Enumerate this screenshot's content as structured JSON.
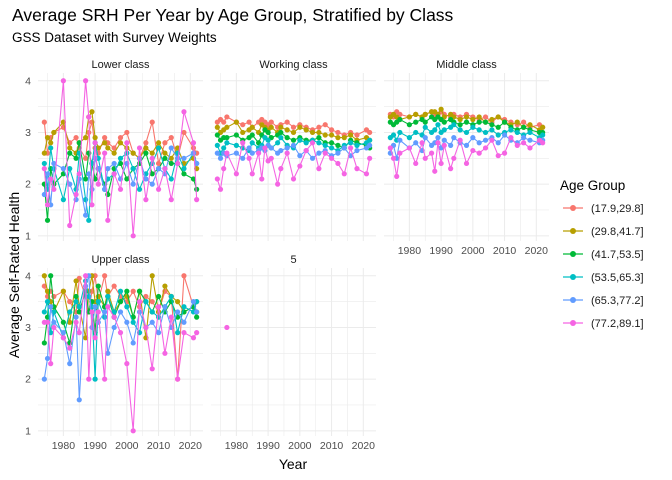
{
  "chart_data": {
    "type": "line",
    "title": "Average SRH Per Year by Age Group, Stratified by Class",
    "subtitle": "GSS Dataset with Survey Weights",
    "xlabel": "Year",
    "ylabel": "Average Self-Rated Health",
    "xlim": [
      1972,
      2024
    ],
    "ylim": [
      0.9,
      4.15
    ],
    "x_ticks": [
      1980,
      1990,
      2000,
      2010,
      2020
    ],
    "y_ticks": [
      1,
      2,
      3,
      4
    ],
    "grid": true,
    "legend_title": "Age Group",
    "legend_position": "right",
    "series": [
      {
        "name": "(17.9,29.8]",
        "color": "#F8766D"
      },
      {
        "name": "(29.8,41.7]",
        "color": "#B79F00"
      },
      {
        "name": "(41.7,53.5]",
        "color": "#00BA38"
      },
      {
        "name": "(53.5,65.3]",
        "color": "#00BFC4"
      },
      {
        "name": "(65.3,77.2]",
        "color": "#619CFF"
      },
      {
        "name": "(77.2,89.1]",
        "color": "#F564E3"
      }
    ],
    "years": [
      1974,
      1975,
      1976,
      1977,
      1980,
      1982,
      1984,
      1985,
      1987,
      1988,
      1989,
      1990,
      1991,
      1993,
      1994,
      1996,
      1998,
      2000,
      2002,
      2004,
      2006,
      2008,
      2010,
      2012,
      2014,
      2016,
      2018,
      2021,
      2022
    ],
    "panels": [
      {
        "label": "Lower class",
        "values": [
          [
            3.2,
            2.6,
            2.9,
            3.0,
            3.1,
            2.8,
            2.9,
            2.7,
            2.5,
            3.0,
            3.2,
            2.7,
            2.6,
            2.9,
            2.8,
            2.7,
            2.9,
            3.0,
            2.6,
            2.5,
            2.8,
            3.2,
            2.4,
            2.8,
            2.9,
            2.5,
            3.0,
            2.7,
            2.6
          ],
          [
            2.6,
            2.9,
            2.8,
            3.0,
            3.2,
            2.7,
            2.6,
            2.8,
            2.9,
            3.3,
            3.4,
            2.9,
            2.7,
            2.8,
            2.7,
            2.6,
            2.8,
            2.7,
            2.6,
            2.5,
            2.7,
            2.6,
            2.8,
            2.6,
            2.5,
            2.7,
            2.4,
            2.5,
            2.3
          ],
          [
            2.0,
            1.3,
            2.3,
            2.0,
            2.2,
            2.6,
            2.5,
            2.8,
            2.1,
            2.6,
            2.4,
            2.1,
            2.3,
            2.0,
            1.8,
            2.3,
            2.4,
            2.1,
            2.3,
            2.4,
            2.6,
            2.2,
            2.3,
            2.5,
            2.4,
            2.4,
            2.2,
            2.1,
            1.9
          ],
          [
            2.4,
            1.9,
            2.7,
            2.3,
            1.7,
            2.3,
            1.9,
            2.6,
            1.7,
            1.3,
            2.4,
            2.8,
            2.5,
            1.9,
            2.1,
            2.2,
            2.5,
            2.6,
            2.3,
            1.9,
            2.2,
            2.4,
            2.7,
            2.3,
            2.1,
            2.6,
            2.3,
            2.6,
            2.4
          ],
          [
            1.8,
            2.2,
            1.6,
            2.4,
            2.3,
            2.0,
            1.7,
            2.1,
            1.4,
            2.2,
            1.9,
            2.5,
            2.3,
            1.9,
            2.3,
            2.4,
            2.1,
            2.4,
            2.0,
            2.5,
            2.1,
            2.0,
            2.3,
            2.2,
            2.7,
            2.5,
            2.5,
            2.6,
            2.4
          ],
          [
            2.3,
            1.6,
            2.1,
            1.9,
            4.0,
            1.2,
            1.8,
            2.2,
            4.0,
            3.3,
            1.6,
            2.8,
            2.0,
            2.6,
            1.3,
            2.2,
            1.9,
            2.8,
            1.0,
            2.7,
            1.7,
            2.5,
            1.9,
            2.3,
            1.7,
            2.4,
            3.4,
            2.8,
            1.7
          ]
        ]
      },
      {
        "label": "Working class",
        "values": [
          [
            3.2,
            3.25,
            3.2,
            3.3,
            3.2,
            3.15,
            3.2,
            3.1,
            3.2,
            3.25,
            3.2,
            3.15,
            3.2,
            3.1,
            3.15,
            3.2,
            3.1,
            3.15,
            3.1,
            3.05,
            3.1,
            3.15,
            3.05,
            3.0,
            2.95,
            3.0,
            2.95,
            3.05,
            3.0
          ],
          [
            3.1,
            3.0,
            3.05,
            3.1,
            3.2,
            3.0,
            3.05,
            3.1,
            3.0,
            3.15,
            3.1,
            3.05,
            3.1,
            3.0,
            3.1,
            3.05,
            3.0,
            3.1,
            3.05,
            3.0,
            3.0,
            2.95,
            2.95,
            2.9,
            2.9,
            2.95,
            2.85,
            2.9,
            2.85
          ],
          [
            2.95,
            2.85,
            2.9,
            2.9,
            2.95,
            2.85,
            2.9,
            2.95,
            2.8,
            2.95,
            3.05,
            3.0,
            2.9,
            2.95,
            3.0,
            2.9,
            2.85,
            2.9,
            2.85,
            2.85,
            2.9,
            2.8,
            2.8,
            2.75,
            2.7,
            2.85,
            2.8,
            2.75,
            2.7
          ],
          [
            2.75,
            2.6,
            2.7,
            2.8,
            2.75,
            2.7,
            2.65,
            2.8,
            2.7,
            2.75,
            2.9,
            2.85,
            2.7,
            2.8,
            2.9,
            2.75,
            2.7,
            2.85,
            2.8,
            2.85,
            2.8,
            2.75,
            2.7,
            2.65,
            2.75,
            2.8,
            2.75,
            2.8,
            2.85
          ],
          [
            2.6,
            2.5,
            2.6,
            2.55,
            2.6,
            2.5,
            2.7,
            2.6,
            2.65,
            2.7,
            2.65,
            2.75,
            2.7,
            2.6,
            2.65,
            2.7,
            2.75,
            2.55,
            2.65,
            2.5,
            2.6,
            2.65,
            2.55,
            2.6,
            2.7,
            2.55,
            2.65,
            2.7,
            2.75
          ],
          [
            2.1,
            1.9,
            2.3,
            2.6,
            2.2,
            2.8,
            2.5,
            2.2,
            2.6,
            2.1,
            2.7,
            2.45,
            2.5,
            2.0,
            2.3,
            2.6,
            2.1,
            2.35,
            2.65,
            2.8,
            2.3,
            2.6,
            2.5,
            2.4,
            2.2,
            2.7,
            2.3,
            2.2,
            2.5
          ]
        ]
      },
      {
        "label": "Middle class",
        "values": [
          [
            3.35,
            3.3,
            3.4,
            3.35,
            3.3,
            3.35,
            3.3,
            3.35,
            3.4,
            3.35,
            3.3,
            3.4,
            3.35,
            3.3,
            3.35,
            3.3,
            3.35,
            3.3,
            3.25,
            3.3,
            3.2,
            3.3,
            3.25,
            3.2,
            3.15,
            3.2,
            3.1,
            3.15,
            3.1
          ],
          [
            3.3,
            3.35,
            3.3,
            3.25,
            3.3,
            3.35,
            3.3,
            3.35,
            3.4,
            3.4,
            3.35,
            3.45,
            3.3,
            3.35,
            3.3,
            3.25,
            3.3,
            3.25,
            3.3,
            3.2,
            3.25,
            3.3,
            3.2,
            3.15,
            3.2,
            3.1,
            3.15,
            3.05,
            3.1
          ],
          [
            3.2,
            3.15,
            3.2,
            3.25,
            3.15,
            3.2,
            3.25,
            3.2,
            3.3,
            3.25,
            3.3,
            3.25,
            3.2,
            3.25,
            3.2,
            3.15,
            3.2,
            3.15,
            3.2,
            3.2,
            3.15,
            3.1,
            3.2,
            3.1,
            3.05,
            3.1,
            3.05,
            3.0,
            3.0
          ],
          [
            2.9,
            2.95,
            2.85,
            3.0,
            2.9,
            3.0,
            2.95,
            3.1,
            3.0,
            3.05,
            3.15,
            3.0,
            3.05,
            3.1,
            3.15,
            3.05,
            3.0,
            3.1,
            3.05,
            3.0,
            3.05,
            2.95,
            3.0,
            3.05,
            3.0,
            2.95,
            3.0,
            2.9,
            2.95
          ],
          [
            2.6,
            2.75,
            2.5,
            2.85,
            2.7,
            2.8,
            2.65,
            2.9,
            2.75,
            2.8,
            2.9,
            2.7,
            2.85,
            2.75,
            2.9,
            2.8,
            2.75,
            2.9,
            2.8,
            2.85,
            2.9,
            2.8,
            2.95,
            2.85,
            2.8,
            2.9,
            2.85,
            2.8,
            2.85
          ],
          [
            2.7,
            2.5,
            2.15,
            2.6,
            2.7,
            2.4,
            2.8,
            2.5,
            2.6,
            2.25,
            2.8,
            2.4,
            2.75,
            2.3,
            2.5,
            2.85,
            2.4,
            2.65,
            2.6,
            2.7,
            2.85,
            2.55,
            2.6,
            2.9,
            2.75,
            2.8,
            2.7,
            2.85,
            2.8
          ]
        ]
      },
      {
        "label": "Upper class",
        "values": [
          [
            3.8,
            3.6,
            3.7,
            3.6,
            3.7,
            3.5,
            3.3,
            3.95,
            3.6,
            3.3,
            3.7,
            4.0,
            3.5,
            4.0,
            3.6,
            3.8,
            3.6,
            3.5,
            3.7,
            3.4,
            3.6,
            3.5,
            3.3,
            3.7,
            3.6,
            2.0,
            4.0,
            3.4,
            3.5
          ],
          [
            4.0,
            3.7,
            3.5,
            3.3,
            3.7,
            3.1,
            3.9,
            3.4,
            2.8,
            3.7,
            4.0,
            3.5,
            3.6,
            3.4,
            3.7,
            3.3,
            3.5,
            3.6,
            3.2,
            3.7,
            2.8,
            4.0,
            3.3,
            3.8,
            3.6,
            3.5,
            3.3,
            3.4,
            3.3
          ],
          [
            2.7,
            3.2,
            4.0,
            3.4,
            3.1,
            2.7,
            3.6,
            3.3,
            3.7,
            3.3,
            3.5,
            2.9,
            3.8,
            3.4,
            3.6,
            3.2,
            3.5,
            3.7,
            3.2,
            3.7,
            3.5,
            3.3,
            3.6,
            3.3,
            3.5,
            3.2,
            3.3,
            3.4,
            3.2
          ],
          [
            3.3,
            3.5,
            2.9,
            3.3,
            2.8,
            3.3,
            3.5,
            3.4,
            3.9,
            3.6,
            3.4,
            2.0,
            3.5,
            3.2,
            3.6,
            3.3,
            3.7,
            3.4,
            3.1,
            2.9,
            3.5,
            3.3,
            3.2,
            3.4,
            3.6,
            2.9,
            3.4,
            3.3,
            3.5
          ],
          [
            2.0,
            2.4,
            3.4,
            3.1,
            2.9,
            2.3,
            3.2,
            1.6,
            3.8,
            4.0,
            3.0,
            3.4,
            3.1,
            3.3,
            2.5,
            3.0,
            3.3,
            3.1,
            2.7,
            3.3,
            3.0,
            3.1,
            2.9,
            3.4,
            3.0,
            3.3,
            3.1,
            3.5,
            3.3
          ],
          [
            3.1,
            3.1,
            2.3,
            3.0,
            2.8,
            2.6,
            3.1,
            2.9,
            4.0,
            2.0,
            3.3,
            2.8,
            3.3,
            2.0,
            3.4,
            3.2,
            2.9,
            2.3,
            1.0,
            3.5,
            3.0,
            2.2,
            3.4,
            2.5,
            3.2,
            2.0,
            2.9,
            2.8,
            2.9
          ]
        ]
      },
      {
        "label": "5",
        "points": [
          {
            "x": 1977,
            "y": 3.0,
            "series": "(77.2,89.1]"
          }
        ]
      }
    ]
  }
}
